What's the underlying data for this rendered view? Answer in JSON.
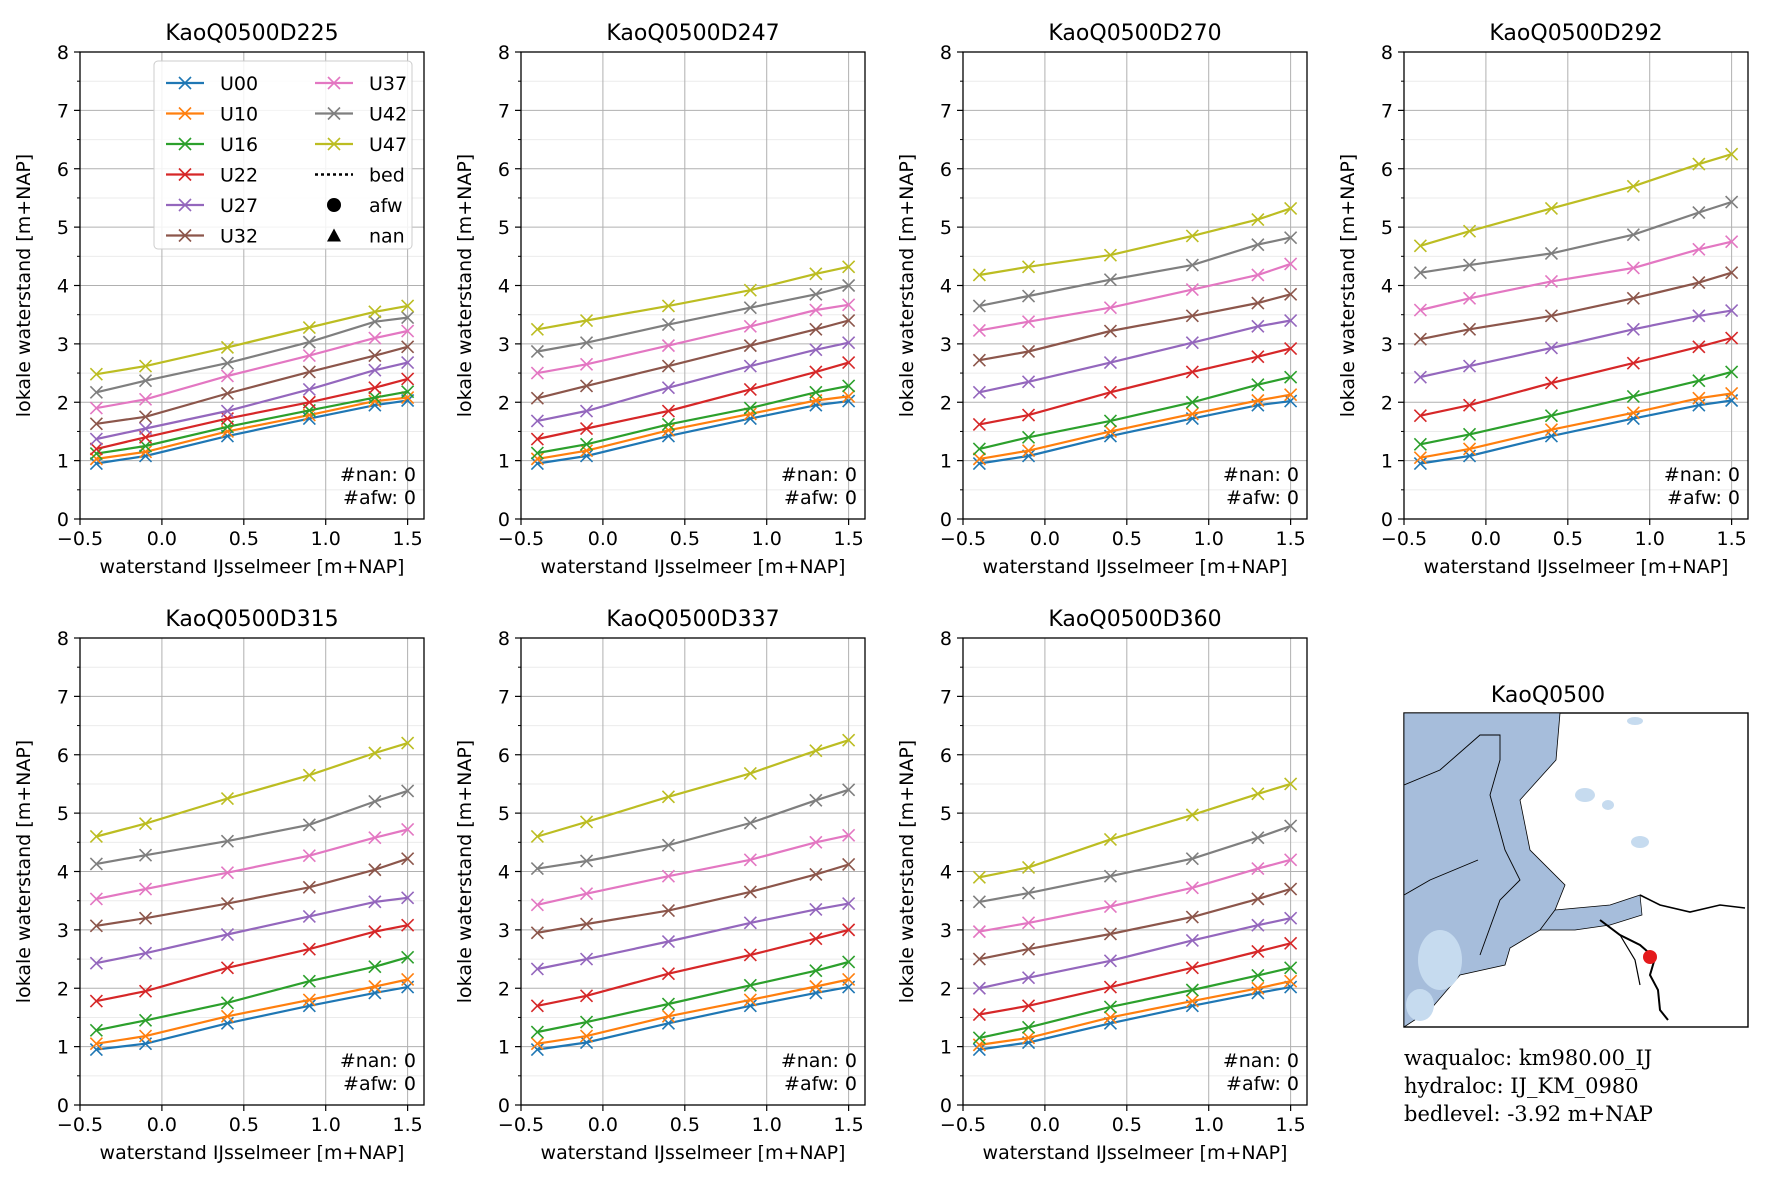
{
  "figure": {
    "colors": {
      "U00": "#1f77b4",
      "U10": "#ff7f0e",
      "U16": "#2ca02c",
      "U22": "#d62728",
      "U27": "#9467bd",
      "U32": "#8c564b",
      "U37": "#e377c2",
      "U42": "#7f7f7f",
      "U47": "#bcbd22"
    },
    "legend": {
      "entries": [
        "U00",
        "U10",
        "U16",
        "U22",
        "U27",
        "U32",
        "U37",
        "U42",
        "U47"
      ],
      "bed_label": "bed",
      "afw_label": "afw",
      "nan_label": "nan"
    },
    "map_panel": {
      "title": "KaoQ0500",
      "water_color": "#a6bddb",
      "point_color": "#e41a1c",
      "info": [
        "waqualoc: km980.00_IJ",
        "hydraloc: IJ_KM_0980",
        "bedlevel: -3.92 m+NAP"
      ]
    }
  },
  "chart_data": [
    {
      "type": "line",
      "title": "KaoQ0500D225",
      "xlabel": "waterstand IJsselmeer [m+NAP]",
      "ylabel": "lokale waterstand [m+NAP]",
      "xlim": [
        -0.5,
        1.6
      ],
      "ylim": [
        0,
        8
      ],
      "xticks": [
        "−0.5",
        "0.0",
        "0.5",
        "1.0",
        "1.5"
      ],
      "yticks": [
        "0",
        "1",
        "2",
        "3",
        "4",
        "5",
        "6",
        "7",
        "8"
      ],
      "grid": true,
      "legend": "top-center",
      "x": [
        -0.4,
        -0.1,
        0.4,
        0.9,
        1.3,
        1.5
      ],
      "counts": [
        "#nan: 0",
        "#afw: 0"
      ],
      "series": [
        {
          "name": "U00",
          "values": [
            0.95,
            1.08,
            1.42,
            1.72,
            1.95,
            2.03
          ]
        },
        {
          "name": "U10",
          "values": [
            1.03,
            1.15,
            1.5,
            1.78,
            2.02,
            2.08
          ]
        },
        {
          "name": "U16",
          "values": [
            1.12,
            1.25,
            1.58,
            1.86,
            2.08,
            2.18
          ]
        },
        {
          "name": "U22",
          "values": [
            1.2,
            1.4,
            1.72,
            2.0,
            2.25,
            2.4
          ]
        },
        {
          "name": "U27",
          "values": [
            1.37,
            1.55,
            1.85,
            2.22,
            2.55,
            2.68
          ]
        },
        {
          "name": "U32",
          "values": [
            1.63,
            1.75,
            2.15,
            2.52,
            2.8,
            2.95
          ]
        },
        {
          "name": "U37",
          "values": [
            1.9,
            2.05,
            2.45,
            2.8,
            3.1,
            3.22
          ]
        },
        {
          "name": "U42",
          "values": [
            2.17,
            2.37,
            2.67,
            3.03,
            3.38,
            3.45
          ]
        },
        {
          "name": "U47",
          "values": [
            2.48,
            2.62,
            2.94,
            3.28,
            3.55,
            3.65
          ]
        }
      ]
    },
    {
      "type": "line",
      "title": "KaoQ0500D247",
      "xlabel": "waterstand IJsselmeer [m+NAP]",
      "ylabel": "lokale waterstand [m+NAP]",
      "xlim": [
        -0.5,
        1.6
      ],
      "ylim": [
        0,
        8
      ],
      "xticks": [
        "−0.5",
        "0.0",
        "0.5",
        "1.0",
        "1.5"
      ],
      "yticks": [
        "0",
        "1",
        "2",
        "3",
        "4",
        "5",
        "6",
        "7",
        "8"
      ],
      "grid": true,
      "x": [
        -0.4,
        -0.1,
        0.4,
        0.9,
        1.3,
        1.5
      ],
      "counts": [
        "#nan: 0",
        "#afw: 0"
      ],
      "series": [
        {
          "name": "U00",
          "values": [
            0.95,
            1.08,
            1.42,
            1.72,
            1.95,
            2.02
          ]
        },
        {
          "name": "U10",
          "values": [
            1.03,
            1.17,
            1.52,
            1.8,
            2.03,
            2.1
          ]
        },
        {
          "name": "U16",
          "values": [
            1.13,
            1.28,
            1.62,
            1.9,
            2.17,
            2.28
          ]
        },
        {
          "name": "U22",
          "values": [
            1.37,
            1.55,
            1.85,
            2.22,
            2.52,
            2.68
          ]
        },
        {
          "name": "U27",
          "values": [
            1.68,
            1.85,
            2.25,
            2.62,
            2.9,
            3.02
          ]
        },
        {
          "name": "U32",
          "values": [
            2.07,
            2.28,
            2.62,
            2.97,
            3.25,
            3.4
          ]
        },
        {
          "name": "U37",
          "values": [
            2.5,
            2.65,
            2.97,
            3.3,
            3.58,
            3.67
          ]
        },
        {
          "name": "U42",
          "values": [
            2.87,
            3.02,
            3.33,
            3.62,
            3.85,
            4.0
          ]
        },
        {
          "name": "U47",
          "values": [
            3.25,
            3.4,
            3.65,
            3.92,
            4.2,
            4.32
          ]
        }
      ]
    },
    {
      "type": "line",
      "title": "KaoQ0500D270",
      "xlabel": "waterstand IJsselmeer [m+NAP]",
      "ylabel": "lokale waterstand [m+NAP]",
      "xlim": [
        -0.5,
        1.6
      ],
      "ylim": [
        0,
        8
      ],
      "xticks": [
        "−0.5",
        "0.0",
        "0.5",
        "1.0",
        "1.5"
      ],
      "yticks": [
        "0",
        "1",
        "2",
        "3",
        "4",
        "5",
        "6",
        "7",
        "8"
      ],
      "grid": true,
      "x": [
        -0.4,
        -0.1,
        0.4,
        0.9,
        1.3,
        1.5
      ],
      "counts": [
        "#nan: 0",
        "#afw: 0"
      ],
      "series": [
        {
          "name": "U00",
          "values": [
            0.95,
            1.08,
            1.42,
            1.72,
            1.95,
            2.02
          ]
        },
        {
          "name": "U10",
          "values": [
            1.03,
            1.17,
            1.5,
            1.8,
            2.03,
            2.13
          ]
        },
        {
          "name": "U16",
          "values": [
            1.2,
            1.4,
            1.68,
            2.0,
            2.3,
            2.43
          ]
        },
        {
          "name": "U22",
          "values": [
            1.62,
            1.78,
            2.17,
            2.52,
            2.78,
            2.92
          ]
        },
        {
          "name": "U27",
          "values": [
            2.17,
            2.35,
            2.68,
            3.02,
            3.3,
            3.4
          ]
        },
        {
          "name": "U32",
          "values": [
            2.72,
            2.87,
            3.22,
            3.48,
            3.7,
            3.85
          ]
        },
        {
          "name": "U37",
          "values": [
            3.23,
            3.38,
            3.62,
            3.93,
            4.18,
            4.37
          ]
        },
        {
          "name": "U42",
          "values": [
            3.65,
            3.82,
            4.1,
            4.35,
            4.7,
            4.82
          ]
        },
        {
          "name": "U47",
          "values": [
            4.18,
            4.32,
            4.52,
            4.85,
            5.13,
            5.32
          ]
        }
      ]
    },
    {
      "type": "line",
      "title": "KaoQ0500D292",
      "xlabel": "waterstand IJsselmeer [m+NAP]",
      "ylabel": "lokale waterstand [m+NAP]",
      "xlim": [
        -0.5,
        1.6
      ],
      "ylim": [
        0,
        8
      ],
      "xticks": [
        "−0.5",
        "0.0",
        "0.5",
        "1.0",
        "1.5"
      ],
      "yticks": [
        "0",
        "1",
        "2",
        "3",
        "4",
        "5",
        "6",
        "7",
        "8"
      ],
      "grid": true,
      "x": [
        -0.4,
        -0.1,
        0.4,
        0.9,
        1.3,
        1.5
      ],
      "counts": [
        "#nan: 0",
        "#afw: 0"
      ],
      "series": [
        {
          "name": "U00",
          "values": [
            0.95,
            1.08,
            1.42,
            1.72,
            1.95,
            2.03
          ]
        },
        {
          "name": "U10",
          "values": [
            1.05,
            1.2,
            1.53,
            1.82,
            2.07,
            2.15
          ]
        },
        {
          "name": "U16",
          "values": [
            1.28,
            1.45,
            1.77,
            2.1,
            2.37,
            2.52
          ]
        },
        {
          "name": "U22",
          "values": [
            1.77,
            1.95,
            2.33,
            2.67,
            2.95,
            3.1
          ]
        },
        {
          "name": "U27",
          "values": [
            2.43,
            2.62,
            2.93,
            3.25,
            3.48,
            3.57
          ]
        },
        {
          "name": "U32",
          "values": [
            3.08,
            3.25,
            3.48,
            3.78,
            4.05,
            4.22
          ]
        },
        {
          "name": "U37",
          "values": [
            3.58,
            3.78,
            4.07,
            4.3,
            4.62,
            4.75
          ]
        },
        {
          "name": "U42",
          "values": [
            4.22,
            4.35,
            4.55,
            4.87,
            5.25,
            5.43
          ]
        },
        {
          "name": "U47",
          "values": [
            4.68,
            4.93,
            5.32,
            5.7,
            6.08,
            6.25
          ]
        }
      ]
    },
    {
      "type": "line",
      "title": "KaoQ0500D315",
      "xlabel": "waterstand IJsselmeer [m+NAP]",
      "ylabel": "lokale waterstand [m+NAP]",
      "xlim": [
        -0.5,
        1.6
      ],
      "ylim": [
        0,
        8
      ],
      "xticks": [
        "−0.5",
        "0.0",
        "0.5",
        "1.0",
        "1.5"
      ],
      "yticks": [
        "0",
        "1",
        "2",
        "3",
        "4",
        "5",
        "6",
        "7",
        "8"
      ],
      "grid": true,
      "x": [
        -0.4,
        -0.1,
        0.4,
        0.9,
        1.3,
        1.5
      ],
      "counts": [
        "#nan: 0",
        "#afw: 0"
      ],
      "series": [
        {
          "name": "U00",
          "values": [
            0.95,
            1.05,
            1.4,
            1.7,
            1.92,
            2.02
          ]
        },
        {
          "name": "U10",
          "values": [
            1.05,
            1.18,
            1.52,
            1.8,
            2.03,
            2.15
          ]
        },
        {
          "name": "U16",
          "values": [
            1.28,
            1.45,
            1.75,
            2.12,
            2.37,
            2.53
          ]
        },
        {
          "name": "U22",
          "values": [
            1.78,
            1.95,
            2.35,
            2.67,
            2.97,
            3.08
          ]
        },
        {
          "name": "U27",
          "values": [
            2.43,
            2.6,
            2.92,
            3.23,
            3.48,
            3.55
          ]
        },
        {
          "name": "U32",
          "values": [
            3.07,
            3.2,
            3.45,
            3.73,
            4.03,
            4.22
          ]
        },
        {
          "name": "U37",
          "values": [
            3.53,
            3.7,
            3.98,
            4.27,
            4.58,
            4.72
          ]
        },
        {
          "name": "U42",
          "values": [
            4.13,
            4.28,
            4.52,
            4.8,
            5.2,
            5.38
          ]
        },
        {
          "name": "U47",
          "values": [
            4.6,
            4.82,
            5.25,
            5.65,
            6.03,
            6.2
          ]
        }
      ]
    },
    {
      "type": "line",
      "title": "KaoQ0500D337",
      "xlabel": "waterstand IJsselmeer [m+NAP]",
      "ylabel": "lokale waterstand [m+NAP]",
      "xlim": [
        -0.5,
        1.6
      ],
      "ylim": [
        0,
        8
      ],
      "xticks": [
        "−0.5",
        "0.0",
        "0.5",
        "1.0",
        "1.5"
      ],
      "yticks": [
        "0",
        "1",
        "2",
        "3",
        "4",
        "5",
        "6",
        "7",
        "8"
      ],
      "grid": true,
      "x": [
        -0.4,
        -0.1,
        0.4,
        0.9,
        1.3,
        1.5
      ],
      "counts": [
        "#nan: 0",
        "#afw: 0"
      ],
      "series": [
        {
          "name": "U00",
          "values": [
            0.95,
            1.07,
            1.4,
            1.7,
            1.92,
            2.02
          ]
        },
        {
          "name": "U10",
          "values": [
            1.05,
            1.18,
            1.52,
            1.8,
            2.03,
            2.15
          ]
        },
        {
          "name": "U16",
          "values": [
            1.25,
            1.42,
            1.73,
            2.05,
            2.3,
            2.45
          ]
        },
        {
          "name": "U22",
          "values": [
            1.7,
            1.87,
            2.25,
            2.57,
            2.85,
            3.0
          ]
        },
        {
          "name": "U27",
          "values": [
            2.33,
            2.5,
            2.8,
            3.12,
            3.35,
            3.45
          ]
        },
        {
          "name": "U32",
          "values": [
            2.95,
            3.1,
            3.33,
            3.65,
            3.95,
            4.12
          ]
        },
        {
          "name": "U37",
          "values": [
            3.43,
            3.62,
            3.92,
            4.2,
            4.5,
            4.62
          ]
        },
        {
          "name": "U42",
          "values": [
            4.05,
            4.18,
            4.45,
            4.83,
            5.22,
            5.4
          ]
        },
        {
          "name": "U47",
          "values": [
            4.6,
            4.85,
            5.28,
            5.68,
            6.07,
            6.25
          ]
        }
      ]
    },
    {
      "type": "line",
      "title": "KaoQ0500D360",
      "xlabel": "waterstand IJsselmeer [m+NAP]",
      "ylabel": "lokale waterstand [m+NAP]",
      "xlim": [
        -0.5,
        1.6
      ],
      "ylim": [
        0,
        8
      ],
      "xticks": [
        "−0.5",
        "0.0",
        "0.5",
        "1.0",
        "1.5"
      ],
      "yticks": [
        "0",
        "1",
        "2",
        "3",
        "4",
        "5",
        "6",
        "7",
        "8"
      ],
      "grid": true,
      "x": [
        -0.4,
        -0.1,
        0.4,
        0.9,
        1.3,
        1.5
      ],
      "counts": [
        "#nan: 0",
        "#afw: 0"
      ],
      "series": [
        {
          "name": "U00",
          "values": [
            0.95,
            1.07,
            1.4,
            1.7,
            1.92,
            2.02
          ]
        },
        {
          "name": "U10",
          "values": [
            1.03,
            1.15,
            1.5,
            1.78,
            2.0,
            2.12
          ]
        },
        {
          "name": "U16",
          "values": [
            1.15,
            1.33,
            1.68,
            1.97,
            2.22,
            2.35
          ]
        },
        {
          "name": "U22",
          "values": [
            1.55,
            1.7,
            2.02,
            2.35,
            2.63,
            2.77
          ]
        },
        {
          "name": "U27",
          "values": [
            2.0,
            2.18,
            2.47,
            2.82,
            3.08,
            3.2
          ]
        },
        {
          "name": "U32",
          "values": [
            2.5,
            2.67,
            2.93,
            3.22,
            3.53,
            3.7
          ]
        },
        {
          "name": "U37",
          "values": [
            2.97,
            3.12,
            3.4,
            3.72,
            4.05,
            4.2
          ]
        },
        {
          "name": "U42",
          "values": [
            3.48,
            3.63,
            3.92,
            4.22,
            4.58,
            4.78
          ]
        },
        {
          "name": "U47",
          "values": [
            3.9,
            4.07,
            4.55,
            4.97,
            5.33,
            5.5
          ]
        }
      ]
    }
  ]
}
